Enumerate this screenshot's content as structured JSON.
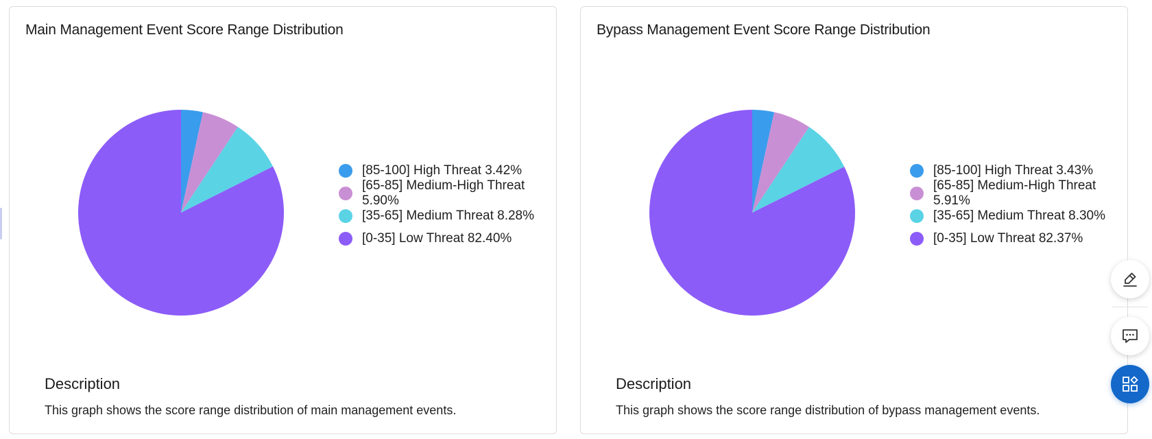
{
  "colors": {
    "high": "#3a9cec",
    "medium_high": "#c98fd4",
    "medium": "#5ad3e5",
    "low": "#8c5cf8",
    "fab_primary": "#1368c9"
  },
  "icons": {
    "edit": "edit-icon",
    "chat": "chat-icon",
    "apps": "apps-icon"
  },
  "main": {
    "title": "Main Management Event Score Range Distribution",
    "description_heading": "Description",
    "description_text": "This graph shows the score range distribution of main management events.",
    "legend": [
      "[85-100] High Threat 3.42%",
      "[65-85] Medium-High Threat 5.90%",
      "[35-65] Medium Threat 8.28%",
      "[0-35] Low Threat 82.40%"
    ]
  },
  "bypass": {
    "title": "Bypass Management Event Score Range Distribution",
    "description_heading": "Description",
    "description_text": "This graph shows the score range distribution of bypass management events.",
    "legend": [
      "[85-100] High Threat 3.43%",
      "[65-85] Medium-High Threat 5.91%",
      "[35-65] Medium Threat 8.30%",
      "[0-35] Low Threat 82.37%"
    ]
  },
  "chart_data": [
    {
      "type": "pie",
      "title": "Main Management Event Score Range Distribution",
      "categories": [
        "[85-100] High Threat",
        "[65-85] Medium-High Threat",
        "[35-65] Medium Threat",
        "[0-35] Low Threat"
      ],
      "values": [
        3.42,
        5.9,
        8.28,
        82.4
      ],
      "colors": [
        "#3a9cec",
        "#c98fd4",
        "#5ad3e5",
        "#8c5cf8"
      ],
      "legend_position": "right"
    },
    {
      "type": "pie",
      "title": "Bypass Management Event Score Range Distribution",
      "categories": [
        "[85-100] High Threat",
        "[65-85] Medium-High Threat",
        "[35-65] Medium Threat",
        "[0-35] Low Threat"
      ],
      "values": [
        3.43,
        5.91,
        8.3,
        82.37
      ],
      "colors": [
        "#3a9cec",
        "#c98fd4",
        "#5ad3e5",
        "#8c5cf8"
      ],
      "legend_position": "right"
    }
  ]
}
